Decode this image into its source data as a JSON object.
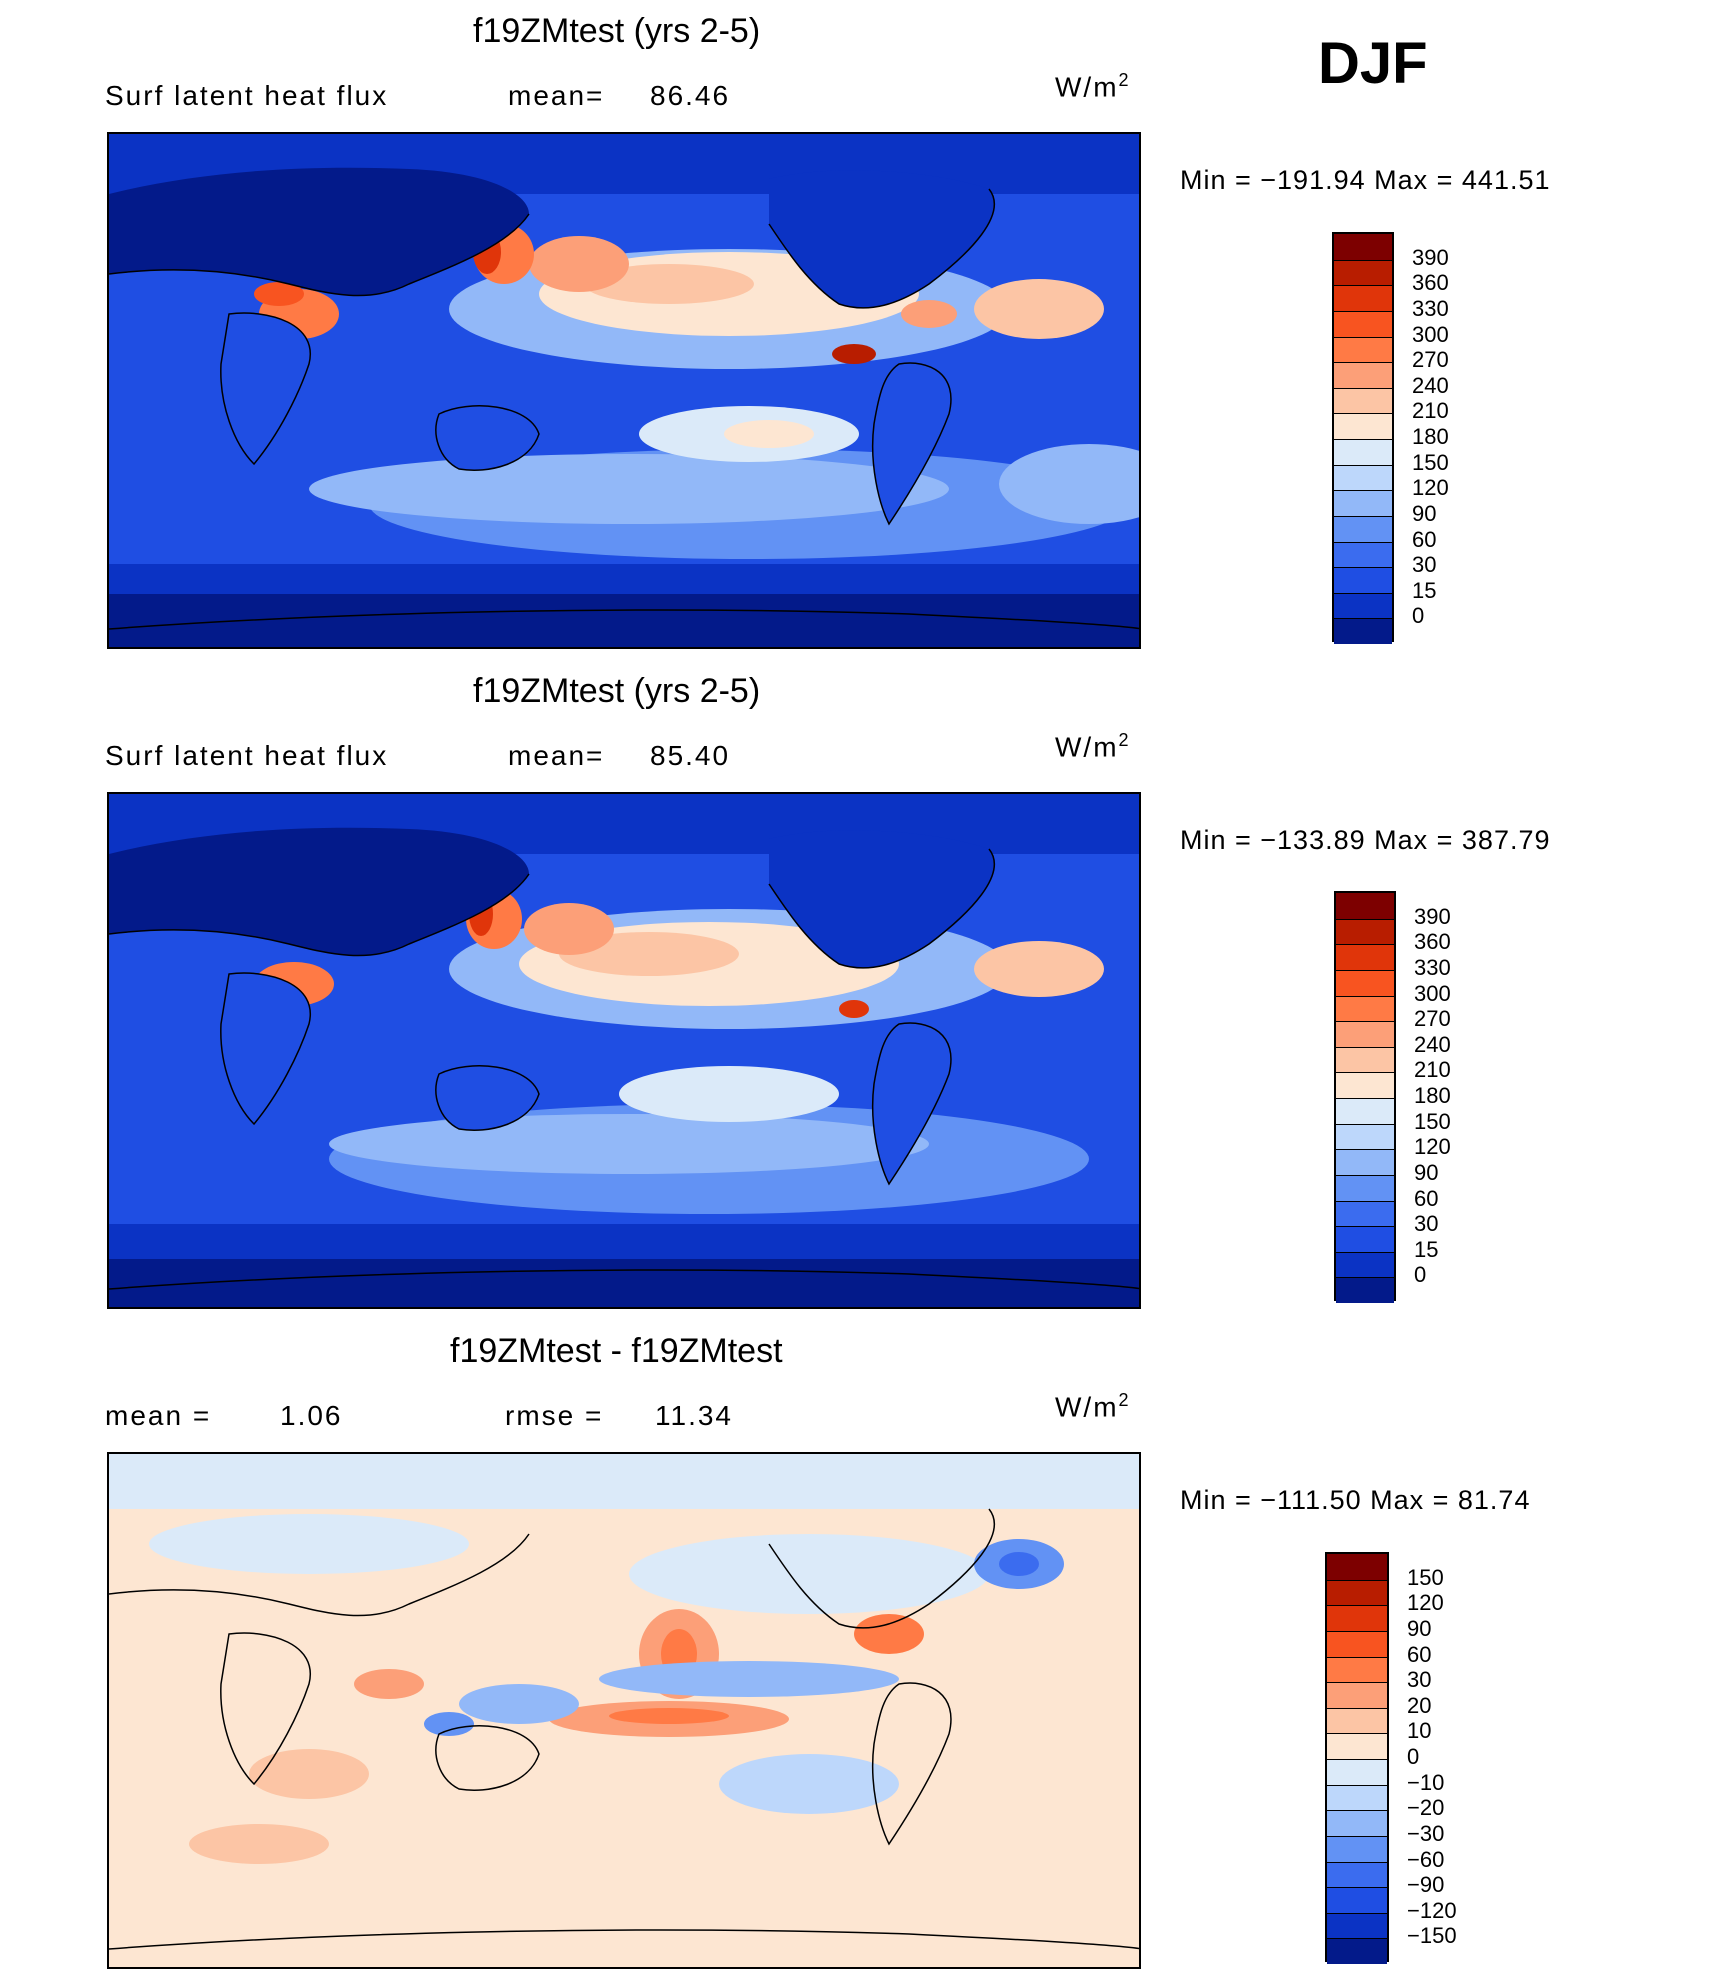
{
  "season": "DJF",
  "panels": [
    {
      "title": "f19ZMtest (yrs 2-5)",
      "left_label": "Surf latent heat flux",
      "stat_label": "mean=",
      "stat_value": "86.46",
      "units_base": "W/m",
      "units_exp": "2",
      "minmax": "Min = −191.94 Max = 441.51",
      "colorbar": {
        "labels": [
          "390",
          "360",
          "330",
          "300",
          "270",
          "240",
          "210",
          "180",
          "150",
          "120",
          "90",
          "60",
          "30",
          "15",
          "0"
        ],
        "colors": [
          "#7d0000",
          "#b81d00",
          "#e0350a",
          "#f85420",
          "#ff7a45",
          "#fc9f78",
          "#fcc5a5",
          "#fde6d2",
          "#dbeaf9",
          "#bdd7fb",
          "#92b8f8",
          "#6292f4",
          "#3b6cef",
          "#1f4ee3",
          "#0b33c4",
          "#031a8a"
        ]
      },
      "map_theme": "absolute_a"
    },
    {
      "title": "f19ZMtest (yrs 2-5)",
      "left_label": "Surf latent heat flux",
      "stat_label": "mean=",
      "stat_value": "85.40",
      "units_base": "W/m",
      "units_exp": "2",
      "minmax": "Min = −133.89 Max = 387.79",
      "colorbar": {
        "labels": [
          "390",
          "360",
          "330",
          "300",
          "270",
          "240",
          "210",
          "180",
          "150",
          "120",
          "90",
          "60",
          "30",
          "15",
          "0"
        ],
        "colors": [
          "#7d0000",
          "#b81d00",
          "#e0350a",
          "#f85420",
          "#ff7a45",
          "#fc9f78",
          "#fcc5a5",
          "#fde6d2",
          "#dbeaf9",
          "#bdd7fb",
          "#92b8f8",
          "#6292f4",
          "#3b6cef",
          "#1f4ee3",
          "#0b33c4",
          "#031a8a"
        ]
      },
      "map_theme": "absolute_b"
    },
    {
      "title": "f19ZMtest - f19ZMtest",
      "left_label": "mean =",
      "left_value": "1.06",
      "stat_label": "rmse =",
      "stat_value": "11.34",
      "units_base": "W/m",
      "units_exp": "2",
      "minmax": "Min = −111.50 Max =  81.74",
      "colorbar": {
        "labels": [
          "150",
          "120",
          "90",
          "60",
          "30",
          "20",
          "10",
          "0",
          "−10",
          "−20",
          "−30",
          "−60",
          "−90",
          "−120",
          "−150"
        ],
        "colors": [
          "#7d0000",
          "#b81d00",
          "#e0350a",
          "#f85420",
          "#ff7a45",
          "#fc9f78",
          "#fcc5a5",
          "#fde6d2",
          "#dbeaf9",
          "#bdd7fb",
          "#92b8f8",
          "#6292f4",
          "#3b6cef",
          "#1f4ee3",
          "#0b33c4",
          "#031a8a"
        ]
      },
      "map_theme": "difference"
    }
  ]
}
